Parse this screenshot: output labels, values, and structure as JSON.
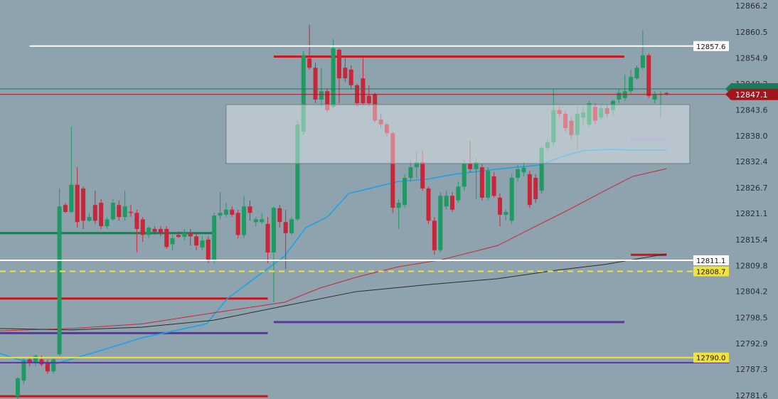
{
  "chart_data": {
    "type": "candlestick",
    "up_color": "#1f9a62",
    "down_color": "#c8273a",
    "background": "#8ea3ad",
    "ylim": [
      12781.0,
      12867.6
    ],
    "yticks": [
      12866.2,
      12860.5,
      12854.9,
      12849.2,
      12843.6,
      {
        "value": 12838,
        "label": "12838.0"
      },
      12832.4,
      12826.7,
      12821.1,
      12815.4,
      12809.8,
      12804.2,
      12798.5,
      12792.9,
      12787.3,
      12781.6
    ],
    "open": [
      12781.6,
      12785.0,
      12789.6,
      12788.9,
      12789.6,
      12788.9,
      12787.0,
      12790.7,
      12823.1,
      12821.6,
      12827.5,
      12826.7,
      12819.7,
      12823.1,
      12823.6,
      12818.5,
      12820.0,
      12823.1,
      12820.5,
      12821.6,
      12821.4,
      12820.0,
      12816.6,
      12817.9,
      12817.9,
      12817.9,
      12814.6,
      12816.6,
      12816.2,
      12817.0,
      12816.3,
      12813.9,
      12815.6,
      12811.2,
      12820.8,
      12821.0,
      12822.1,
      12821.4,
      12816.6,
      12822.8,
      12819.4,
      12819.4,
      12819.0,
      12812.8,
      12822.4,
      12819.4,
      12817.0,
      12820.0,
      12839.0,
      12854.9,
      12852.9,
      12846.0,
      12847.8,
      12844.4,
      12856.8,
      12852.9,
      12852.5,
      12849.1,
      12850.6,
      12846.8,
      12847.2,
      12841.7,
      12840.6,
      12838.7,
      12822.5,
      12823.1,
      12829.0,
      12831.3,
      12832.4,
      12826.7,
      12819.7,
      12813.3,
      12822.8,
      12825.1,
      12824.1,
      12827.1,
      12832.1,
      12830.9,
      12831.3,
      12824.7,
      12829.3,
      12824.7,
      12821.0,
      12819.7,
      12829.0,
      12830.2,
      12829.8,
      12829.0,
      12826.2,
      12835.5,
      12836.7,
      12843.7,
      12842.9,
      12841.4,
      12838.3,
      12842.1,
      12840.6,
      12844.4,
      12842.1,
      12844.1,
      12843.7,
      12846.0,
      12846.3,
      12847.8,
      12850.6,
      12852.9,
      12855.6,
      12846.0,
      12847.1,
      12847.4
    ],
    "high": [
      12785.8,
      12789.9,
      12790.1,
      12790.7,
      12790.4,
      12789.6,
      12790.1,
      12826.7,
      12823.6,
      12840.1,
      12831.3,
      12827.1,
      12821.4,
      12826.2,
      12824.4,
      12820.5,
      12824.4,
      12824.1,
      12826.2,
      12823.1,
      12822.1,
      12820.5,
      12818.5,
      12818.5,
      12818.5,
      12818.5,
      12816.6,
      12817.4,
      12817.9,
      12817.9,
      12817.0,
      12816.3,
      12816.3,
      12821.4,
      12825.9,
      12823.6,
      12822.8,
      12822.1,
      12825.1,
      12824.1,
      12820.5,
      12821.4,
      12820.5,
      12822.8,
      12823.1,
      12822.1,
      12820.5,
      12841.4,
      12856.5,
      12862.2,
      12854.0,
      12852.9,
      12848.3,
      12859.1,
      12857.1,
      12854.9,
      12853.4,
      12849.4,
      12854.9,
      12849.1,
      12847.5,
      12842.9,
      12841.0,
      12839.0,
      12824.4,
      12829.8,
      12832.9,
      12834.9,
      12834.9,
      12827.1,
      12820.5,
      12825.9,
      12826.2,
      12825.9,
      12828.2,
      12832.9,
      12837.0,
      12833.3,
      12832.1,
      12831.3,
      12830.2,
      12825.6,
      12822.1,
      12829.8,
      12831.8,
      12832.4,
      12830.5,
      12829.8,
      12835.9,
      12837.5,
      12848.3,
      12844.4,
      12843.7,
      12842.1,
      12844.4,
      12844.4,
      12845.7,
      12845.2,
      12844.7,
      12844.7,
      12846.0,
      12848.3,
      12851.4,
      12852.5,
      12853.4,
      12861.0,
      12856.0,
      12847.8,
      12847.8,
      12847.7
    ],
    "low": [
      12781.0,
      12784.2,
      12788.1,
      12788.1,
      12788.1,
      12786.5,
      12786.5,
      12790.4,
      12821.4,
      12821.4,
      12818.2,
      12817.9,
      12819.4,
      12819.0,
      12817.9,
      12817.9,
      12819.7,
      12819.7,
      12819.7,
      12820.5,
      12812.8,
      12815.1,
      12815.9,
      12816.6,
      12816.3,
      12813.6,
      12813.3,
      12815.9,
      12815.4,
      12814.3,
      12813.3,
      12813.3,
      12810.5,
      12810.5,
      12820.0,
      12820.5,
      12820.5,
      12815.9,
      12815.9,
      12819.7,
      12818.5,
      12819.0,
      12810.5,
      12802.0,
      12818.2,
      12809.2,
      12816.6,
      12819.7,
      12838.3,
      12852.5,
      12845.2,
      12844.4,
      12843.2,
      12844.1,
      12845.2,
      12849.8,
      12848.3,
      12844.4,
      12844.7,
      12844.4,
      12841.0,
      12839.8,
      12838.0,
      12821.4,
      12817.9,
      12822.5,
      12828.2,
      12829.0,
      12826.2,
      12819.0,
      12812.3,
      12812.8,
      12822.1,
      12821.6,
      12823.6,
      12826.2,
      12830.2,
      12824.4,
      12824.1,
      12824.1,
      12824.7,
      12818.5,
      12819.7,
      12819.0,
      12828.2,
      12829.3,
      12822.5,
      12823.6,
      12825.6,
      12834.9,
      12835.9,
      12842.1,
      12839.0,
      12837.5,
      12835.2,
      12840.6,
      12840.1,
      12840.6,
      12841.4,
      12842.1,
      12842.6,
      12845.2,
      12845.7,
      12847.2,
      12850.3,
      12852.5,
      12846.3,
      12845.2,
      12842.1,
      12846.9
    ],
    "close": [
      12785.5,
      12789.3,
      12788.9,
      12790.4,
      12788.5,
      12787.0,
      12789.6,
      12822.8,
      12821.6,
      12827.5,
      12819.4,
      12819.7,
      12820.5,
      12819.7,
      12818.5,
      12820.0,
      12823.6,
      12820.5,
      12822.8,
      12821.4,
      12817.9,
      12816.6,
      12818.2,
      12817.3,
      12817.1,
      12814.0,
      12815.9,
      12816.2,
      12817.0,
      12816.3,
      12814.3,
      12815.4,
      12811.2,
      12820.8,
      12821.4,
      12822.1,
      12821.0,
      12816.6,
      12822.8,
      12821.4,
      12820.0,
      12820.0,
      12812.8,
      12822.5,
      12819.4,
      12817.0,
      12820.0,
      12840.6,
      12855.6,
      12852.9,
      12846.0,
      12847.8,
      12843.7,
      12857.1,
      12850.6,
      12850.6,
      12849.1,
      12845.2,
      12845.2,
      12845.2,
      12841.4,
      12840.6,
      12838.7,
      12822.5,
      12823.6,
      12829.0,
      12831.3,
      12832.4,
      12826.7,
      12819.7,
      12813.3,
      12825.1,
      12825.1,
      12822.1,
      12827.1,
      12832.1,
      12830.9,
      12832.4,
      12824.7,
      12830.5,
      12825.1,
      12821.0,
      12821.6,
      12829.0,
      12830.9,
      12831.2,
      12823.1,
      12824.4,
      12835.5,
      12836.7,
      12843.7,
      12842.9,
      12839.8,
      12838.3,
      12842.9,
      12843.2,
      12845.2,
      12841.4,
      12844.1,
      12842.9,
      12845.7,
      12847.5,
      12847.8,
      12850.9,
      12852.9,
      12855.6,
      12846.8,
      12847.1,
      12847.2,
      12847.2
    ],
    "ma_lines": [
      {
        "color": "#1aa3e8",
        "x": [
          -3,
          0,
          6,
          14.9,
          20.9,
          31.7,
          35.2,
          40,
          44.8,
          48.4,
          52,
          55.6,
          59.1,
          63.9,
          68.7,
          73.5,
          80.6,
          87.8,
          91.4,
          95,
          99.8,
          103.3,
          109
        ],
        "values": [
          12790.9,
          12789.6,
          12788.5,
          12791.9,
          12794.3,
          12797.3,
          12802.8,
          12807.4,
          12812.0,
          12818.2,
          12820.5,
          12825.6,
          12826.7,
          12828.2,
          12828.7,
          12829.8,
          12830.9,
          12831.8,
          12833.6,
          12834.9,
          12835.2,
          12835.0,
          12835.0
        ]
      },
      {
        "color": "#c8273a",
        "x": [
          -3,
          9,
          20.9,
          32.9,
          44.8,
          50.8,
          56.8,
          63.9,
          71.1,
          80.6,
          87.8,
          92.6,
          98.6,
          103.3,
          109
        ],
        "values": [
          12795.8,
          12796.3,
          12797.3,
          12799.7,
          12802.0,
          12805.1,
          12807.4,
          12809.7,
          12811.2,
          12814.3,
          12819.0,
          12822.1,
          12826.2,
          12829.3,
          12831.0
        ]
      },
      {
        "color": "#2b2b2b",
        "x": [
          -3,
          9,
          20.9,
          32.9,
          44.8,
          56.8,
          68.7,
          80.6,
          90.2,
          98.6,
          109
        ],
        "values": [
          12796.3,
          12796.0,
          12796.6,
          12798.1,
          12801.2,
          12804.3,
          12805.8,
          12807.1,
          12808.9,
          12810.2,
          12812.5
        ]
      }
    ],
    "zone": {
      "top": 12844.9,
      "bottom": 12832.1,
      "from": 35.0,
      "to": 112.9
    },
    "segments": [
      {
        "value": 12855.3,
        "from": 43.0,
        "to": 101.9,
        "color": "#c8161d"
      },
      {
        "value": 12802.8,
        "from": -3,
        "to": 42.0,
        "color": "#c8161d"
      },
      {
        "value": 12795.3,
        "from": -3,
        "to": 42.0,
        "color": "#5b35a8"
      },
      {
        "value": 12797.7,
        "from": 43.0,
        "to": 101.9,
        "color": "#5b35a8"
      },
      {
        "value": 12781.6,
        "from": -3,
        "to": 42.0,
        "color": "#c8161d"
      },
      {
        "value": 12817.0,
        "from": -3,
        "to": 32.9,
        "color": "#1b7a5a"
      },
      {
        "value": 12812.3,
        "from": 103.0,
        "to": 109.0,
        "color": "#c8161d"
      },
      {
        "value": 12837.3,
        "from": 103.0,
        "to": 109.0,
        "color": "#9a86d8"
      }
    ],
    "levels": [
      {
        "value": 12857.6,
        "color": "#ffffff",
        "from": 2.0
      },
      {
        "value": 12848.3,
        "color": "#1b7a5a",
        "tag": "#1b7a5a"
      },
      {
        "value": 12847.1,
        "color": "#a3161d",
        "tag": "#a3161d",
        "text_color": "#ffffff"
      },
      {
        "value": 12811.1,
        "color": "#ffffff"
      },
      {
        "value": 12808.7,
        "color": "#f2e33a",
        "dashed": true
      },
      {
        "value": 12788.9,
        "color": "#5b35a8"
      },
      {
        "value": 12790,
        "label": "12790.0",
        "color": "#f2e33a"
      }
    ]
  }
}
